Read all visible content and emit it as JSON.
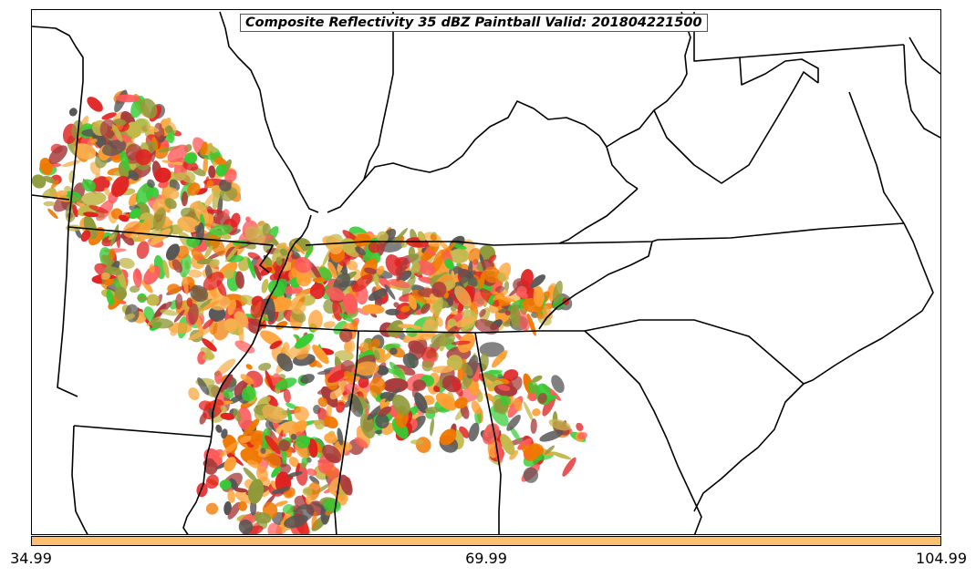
{
  "title": "Composite Reflectivity 35 dBZ Paintball Valid: 201804221500",
  "colorbar": {
    "color": "#fdbf6f",
    "ticks": [
      "34.99",
      "69.99",
      "104.99"
    ]
  },
  "palette": [
    "#ff9f33",
    "#f07800",
    "#e02020",
    "#a83c3c",
    "#8f9a3a",
    "#33cc33",
    "#555555",
    "#ff5a5a",
    "#f7b04f",
    "#c2b84a"
  ]
}
